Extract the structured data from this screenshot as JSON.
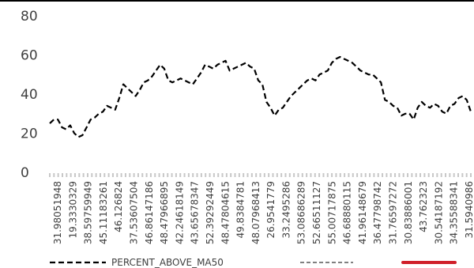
{
  "chart_data": {
    "type": "line",
    "title": "",
    "xlabel": "",
    "ylabel": "",
    "ylim": [
      0,
      80
    ],
    "yticks": [
      0,
      20,
      40,
      60,
      80
    ],
    "grid": false,
    "legend_position": "bottom",
    "x_tick_labels": [
      "31.98051948",
      "19.3330329",
      "38.59759949",
      "45.11183261",
      "46.126824",
      "37.53607504",
      "46.86147186",
      "48.47966895",
      "42.24618149",
      "43.65678347",
      "52.39292449",
      "48.47804615",
      "49.8384781",
      "48.07968413",
      "26.9541779",
      "33.2495286",
      "53.08686289",
      "52.66511127",
      "55.00717875",
      "46.68880115",
      "41.96148679",
      "36.47798742",
      "31.76597272",
      "30.83886001",
      "43.762323",
      "30.54187192",
      "34.35588341",
      "31.5940986"
    ],
    "series": [
      {
        "name": "PERCENT_ABOVE_MA50",
        "color": "#000000",
        "dash": "dashed",
        "values": [
          25,
          27,
          27,
          23,
          22,
          24,
          20,
          18,
          19,
          23,
          27,
          28,
          30,
          31,
          34,
          33,
          32,
          38,
          45,
          43,
          41,
          39,
          42,
          46,
          47,
          49,
          52,
          55,
          53,
          47,
          46,
          47,
          48,
          47,
          46,
          45,
          48,
          51,
          55,
          54,
          53,
          55,
          56,
          57,
          52,
          53,
          54,
          55,
          56,
          54,
          53,
          47,
          45,
          36,
          33,
          29,
          32,
          33,
          36,
          39,
          41,
          43,
          45,
          47,
          48,
          47,
          50,
          51,
          52,
          56,
          58,
          59,
          58,
          57,
          56,
          54,
          52,
          51,
          50,
          50,
          48,
          46,
          37,
          36,
          34,
          33,
          29,
          30,
          30,
          27,
          33,
          36,
          34,
          33,
          35,
          34,
          31,
          30,
          34,
          35,
          38,
          39,
          37,
          31
        ]
      },
      {
        "name": "",
        "color": "#808080",
        "dash": "dashed",
        "values": []
      },
      {
        "name": "",
        "color": "#d0202a",
        "dash": "solid",
        "values": []
      }
    ]
  }
}
